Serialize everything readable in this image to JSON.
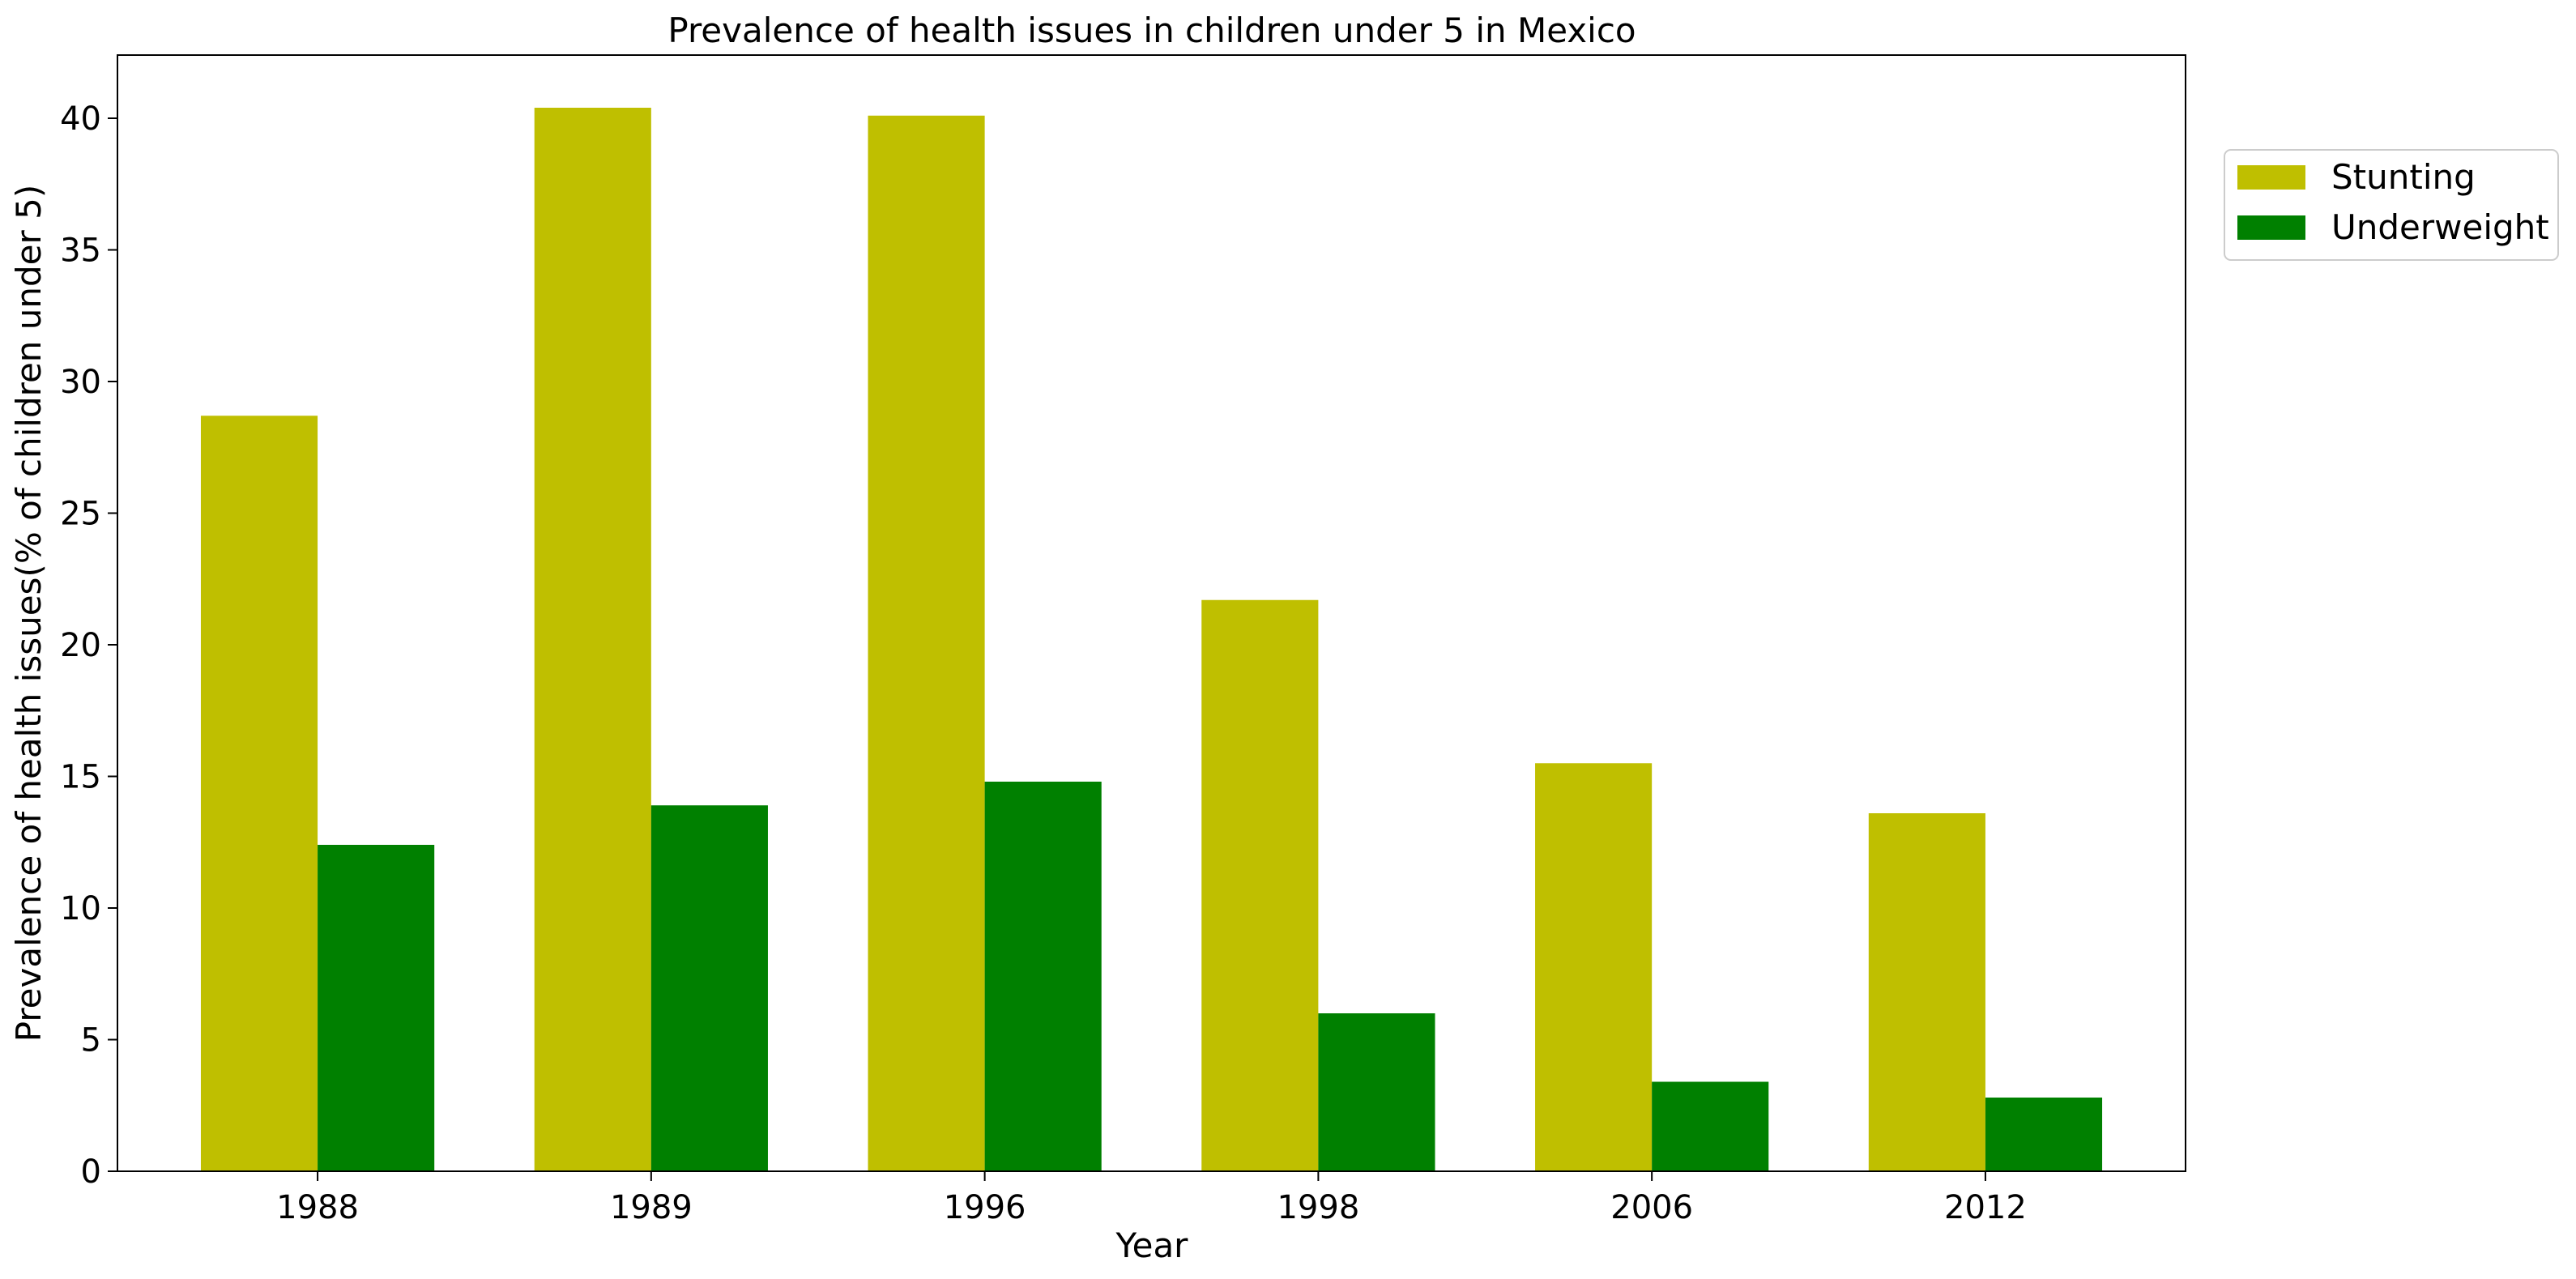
{
  "chart_data": {
    "type": "bar",
    "title": "Prevalence of health issues in children under 5 in Mexico",
    "xlabel": "Year",
    "ylabel": "Prevalence of health issues(% of children under 5)",
    "categories": [
      "1988",
      "1989",
      "1996",
      "1998",
      "2006",
      "2012"
    ],
    "series": [
      {
        "name": "Stunting",
        "color": "#bfbf00",
        "values": [
          28.7,
          40.4,
          40.1,
          21.7,
          15.5,
          13.6
        ]
      },
      {
        "name": "Underweight",
        "color": "#008000",
        "values": [
          12.4,
          13.9,
          14.8,
          6.0,
          3.4,
          2.8
        ]
      }
    ],
    "ylim": [
      0,
      42.4
    ],
    "yticks": [
      0,
      5,
      10,
      15,
      20,
      25,
      30,
      35,
      40
    ],
    "grid": false,
    "legend_position": "outside top-right"
  }
}
